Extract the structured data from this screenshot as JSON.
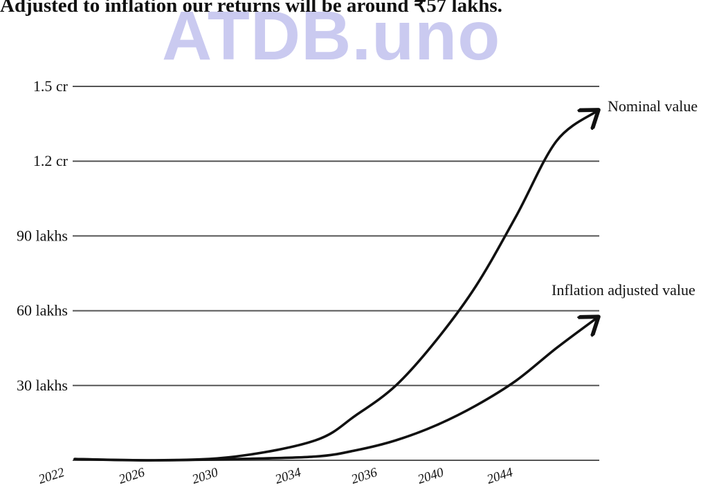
{
  "headline": "Adjusted to inflation our returns will be around ₹57 lakhs.",
  "watermark": "ATDB.uno",
  "chart_data": {
    "type": "line",
    "title": "",
    "xlabel": "",
    "ylabel": "",
    "y_ticks": [
      {
        "label": "1.5 cr",
        "value": 150
      },
      {
        "label": "1.2 cr",
        "value": 120
      },
      {
        "label": "90 lakhs",
        "value": 90
      },
      {
        "label": "60 lakhs",
        "value": 60
      },
      {
        "label": "30 lakhs",
        "value": 30
      }
    ],
    "ylim": [
      0,
      150
    ],
    "x_ticks": [
      "2022",
      "2026",
      "2030",
      "2034",
      "2036",
      "2040",
      "2044"
    ],
    "grid": true,
    "series": [
      {
        "name": "Nominal value",
        "points": [
          [
            2022,
            0.5
          ],
          [
            2026,
            0
          ],
          [
            2030,
            1.5
          ],
          [
            2034,
            8
          ],
          [
            2036,
            18
          ],
          [
            2038,
            30
          ],
          [
            2040,
            48
          ],
          [
            2042,
            70
          ],
          [
            2044,
            98
          ],
          [
            2046,
            128
          ],
          [
            2048,
            140
          ]
        ]
      },
      {
        "name": "Inflation adjusted value",
        "points": [
          [
            2022,
            0.5
          ],
          [
            2026,
            0
          ],
          [
            2030,
            0.5
          ],
          [
            2034,
            1.5
          ],
          [
            2036,
            4
          ],
          [
            2038,
            8
          ],
          [
            2040,
            14
          ],
          [
            2042,
            22
          ],
          [
            2044,
            32
          ],
          [
            2046,
            45
          ],
          [
            2048,
            57
          ]
        ]
      }
    ]
  }
}
